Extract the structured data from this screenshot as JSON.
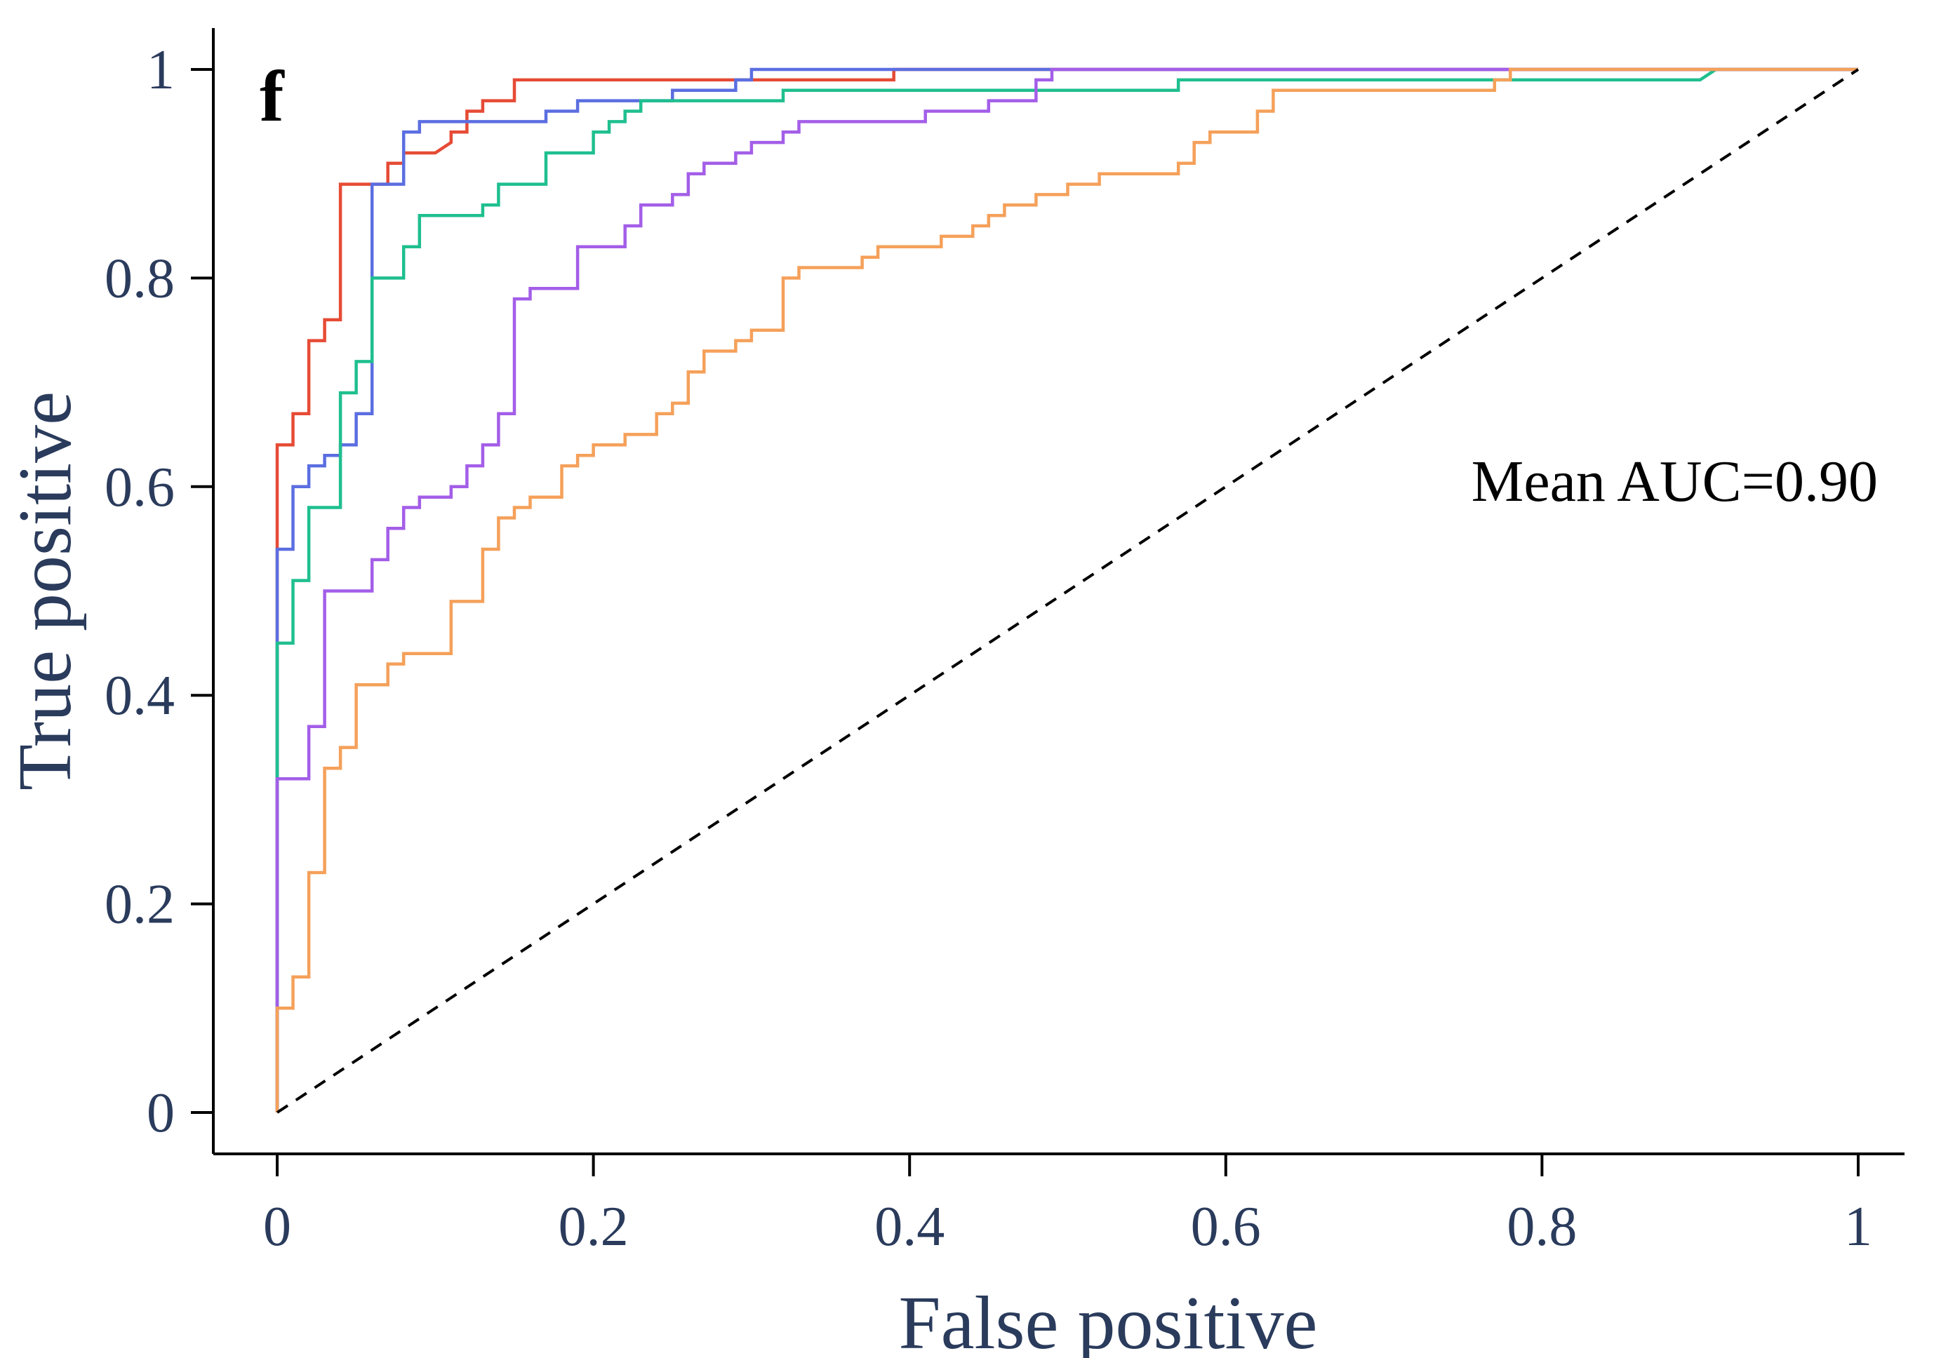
{
  "chart_data": {
    "type": "line",
    "xlabel": "False positive",
    "ylabel": "True positive",
    "panel_label": "f",
    "annotation": "Mean AUC=0.90",
    "xlim": [
      0,
      1
    ],
    "ylim": [
      0,
      1
    ],
    "x_ticks": [
      0,
      0.2,
      0.4,
      0.6,
      0.8,
      1
    ],
    "x_tick_labels": [
      "0",
      "0.2",
      "0.4",
      "0.6",
      "0.8",
      "1"
    ],
    "y_ticks": [
      0,
      0.2,
      0.4,
      0.6,
      0.8,
      1
    ],
    "y_tick_labels": [
      "0",
      "0.2",
      "0.4",
      "0.6",
      "0.8",
      "1"
    ],
    "grid": false,
    "legend": "none",
    "colors": {
      "axis": "#000000",
      "tick_text": "#2a3b5c",
      "diagonal": "#000000"
    },
    "reference_line": {
      "style": "dashed",
      "points": [
        [
          0,
          0
        ],
        [
          1,
          1
        ]
      ]
    },
    "series": [
      {
        "color": "#e64b35",
        "points": [
          [
            0,
            0
          ],
          [
            0,
            0.45
          ],
          [
            0,
            0.64
          ],
          [
            0.01,
            0.64
          ],
          [
            0.01,
            0.67
          ],
          [
            0.02,
            0.67
          ],
          [
            0.02,
            0.74
          ],
          [
            0.03,
            0.74
          ],
          [
            0.03,
            0.76
          ],
          [
            0.04,
            0.76
          ],
          [
            0.04,
            0.77
          ],
          [
            0.04,
            0.89
          ],
          [
            0.07,
            0.89
          ],
          [
            0.07,
            0.91
          ],
          [
            0.08,
            0.91
          ],
          [
            0.08,
            0.92
          ],
          [
            0.1,
            0.92
          ],
          [
            0.11,
            0.93
          ],
          [
            0.11,
            0.94
          ],
          [
            0.12,
            0.94
          ],
          [
            0.12,
            0.96
          ],
          [
            0.13,
            0.96
          ],
          [
            0.13,
            0.97
          ],
          [
            0.15,
            0.97
          ],
          [
            0.15,
            0.99
          ],
          [
            0.39,
            0.99
          ],
          [
            0.39,
            1
          ],
          [
            1,
            1
          ]
        ]
      },
      {
        "color": "#5b6ee1",
        "points": [
          [
            0,
            0
          ],
          [
            0,
            0.54
          ],
          [
            0.01,
            0.54
          ],
          [
            0.01,
            0.6
          ],
          [
            0.02,
            0.6
          ],
          [
            0.02,
            0.62
          ],
          [
            0.03,
            0.62
          ],
          [
            0.03,
            0.63
          ],
          [
            0.04,
            0.63
          ],
          [
            0.04,
            0.64
          ],
          [
            0.05,
            0.64
          ],
          [
            0.05,
            0.67
          ],
          [
            0.06,
            0.67
          ],
          [
            0.06,
            0.89
          ],
          [
            0.08,
            0.89
          ],
          [
            0.08,
            0.94
          ],
          [
            0.09,
            0.94
          ],
          [
            0.09,
            0.95
          ],
          [
            0.17,
            0.95
          ],
          [
            0.17,
            0.96
          ],
          [
            0.19,
            0.96
          ],
          [
            0.19,
            0.97
          ],
          [
            0.25,
            0.97
          ],
          [
            0.25,
            0.98
          ],
          [
            0.29,
            0.98
          ],
          [
            0.29,
            0.99
          ],
          [
            0.3,
            0.99
          ],
          [
            0.3,
            1
          ],
          [
            1,
            1
          ]
        ]
      },
      {
        "color": "#1fbf8f",
        "points": [
          [
            0,
            0
          ],
          [
            0,
            0.32
          ],
          [
            0,
            0.45
          ],
          [
            0.01,
            0.45
          ],
          [
            0.01,
            0.51
          ],
          [
            0.02,
            0.51
          ],
          [
            0.02,
            0.58
          ],
          [
            0.04,
            0.58
          ],
          [
            0.04,
            0.69
          ],
          [
            0.05,
            0.69
          ],
          [
            0.05,
            0.72
          ],
          [
            0.06,
            0.72
          ],
          [
            0.06,
            0.8
          ],
          [
            0.08,
            0.8
          ],
          [
            0.08,
            0.83
          ],
          [
            0.09,
            0.83
          ],
          [
            0.09,
            0.86
          ],
          [
            0.13,
            0.86
          ],
          [
            0.13,
            0.87
          ],
          [
            0.14,
            0.87
          ],
          [
            0.14,
            0.89
          ],
          [
            0.17,
            0.89
          ],
          [
            0.17,
            0.92
          ],
          [
            0.2,
            0.92
          ],
          [
            0.2,
            0.94
          ],
          [
            0.21,
            0.94
          ],
          [
            0.21,
            0.95
          ],
          [
            0.22,
            0.95
          ],
          [
            0.22,
            0.96
          ],
          [
            0.23,
            0.96
          ],
          [
            0.23,
            0.97
          ],
          [
            0.32,
            0.97
          ],
          [
            0.32,
            0.98
          ],
          [
            0.57,
            0.98
          ],
          [
            0.57,
            0.99
          ],
          [
            0.9,
            0.99
          ],
          [
            0.91,
            1
          ],
          [
            1,
            1
          ]
        ]
      },
      {
        "color": "#a35ee8",
        "points": [
          [
            0,
            0
          ],
          [
            0,
            0.1
          ],
          [
            0,
            0.32
          ],
          [
            0.02,
            0.32
          ],
          [
            0.02,
            0.37
          ],
          [
            0.03,
            0.37
          ],
          [
            0.03,
            0.5
          ],
          [
            0.06,
            0.5
          ],
          [
            0.06,
            0.53
          ],
          [
            0.07,
            0.53
          ],
          [
            0.07,
            0.56
          ],
          [
            0.08,
            0.56
          ],
          [
            0.08,
            0.58
          ],
          [
            0.09,
            0.58
          ],
          [
            0.09,
            0.59
          ],
          [
            0.11,
            0.59
          ],
          [
            0.11,
            0.6
          ],
          [
            0.12,
            0.6
          ],
          [
            0.12,
            0.62
          ],
          [
            0.13,
            0.62
          ],
          [
            0.13,
            0.64
          ],
          [
            0.14,
            0.64
          ],
          [
            0.14,
            0.67
          ],
          [
            0.15,
            0.67
          ],
          [
            0.15,
            0.78
          ],
          [
            0.16,
            0.78
          ],
          [
            0.16,
            0.79
          ],
          [
            0.19,
            0.79
          ],
          [
            0.19,
            0.83
          ],
          [
            0.22,
            0.83
          ],
          [
            0.22,
            0.85
          ],
          [
            0.23,
            0.85
          ],
          [
            0.23,
            0.87
          ],
          [
            0.25,
            0.87
          ],
          [
            0.25,
            0.88
          ],
          [
            0.26,
            0.88
          ],
          [
            0.26,
            0.9
          ],
          [
            0.27,
            0.9
          ],
          [
            0.27,
            0.91
          ],
          [
            0.29,
            0.91
          ],
          [
            0.29,
            0.92
          ],
          [
            0.3,
            0.92
          ],
          [
            0.3,
            0.93
          ],
          [
            0.32,
            0.93
          ],
          [
            0.32,
            0.94
          ],
          [
            0.33,
            0.94
          ],
          [
            0.33,
            0.95
          ],
          [
            0.41,
            0.95
          ],
          [
            0.41,
            0.96
          ],
          [
            0.45,
            0.96
          ],
          [
            0.45,
            0.97
          ],
          [
            0.48,
            0.97
          ],
          [
            0.48,
            0.99
          ],
          [
            0.49,
            0.99
          ],
          [
            0.49,
            1
          ],
          [
            1,
            1
          ]
        ]
      },
      {
        "color": "#f5a05a",
        "points": [
          [
            0,
            0
          ],
          [
            0,
            0.1
          ],
          [
            0.01,
            0.1
          ],
          [
            0.01,
            0.13
          ],
          [
            0.02,
            0.13
          ],
          [
            0.02,
            0.23
          ],
          [
            0.03,
            0.23
          ],
          [
            0.03,
            0.33
          ],
          [
            0.04,
            0.33
          ],
          [
            0.04,
            0.35
          ],
          [
            0.05,
            0.35
          ],
          [
            0.05,
            0.41
          ],
          [
            0.07,
            0.41
          ],
          [
            0.07,
            0.43
          ],
          [
            0.08,
            0.43
          ],
          [
            0.08,
            0.44
          ],
          [
            0.11,
            0.44
          ],
          [
            0.11,
            0.49
          ],
          [
            0.13,
            0.49
          ],
          [
            0.13,
            0.54
          ],
          [
            0.14,
            0.54
          ],
          [
            0.14,
            0.57
          ],
          [
            0.15,
            0.57
          ],
          [
            0.15,
            0.58
          ],
          [
            0.16,
            0.58
          ],
          [
            0.16,
            0.59
          ],
          [
            0.18,
            0.59
          ],
          [
            0.18,
            0.62
          ],
          [
            0.19,
            0.62
          ],
          [
            0.19,
            0.63
          ],
          [
            0.2,
            0.63
          ],
          [
            0.2,
            0.64
          ],
          [
            0.22,
            0.64
          ],
          [
            0.22,
            0.65
          ],
          [
            0.24,
            0.65
          ],
          [
            0.24,
            0.67
          ],
          [
            0.25,
            0.67
          ],
          [
            0.25,
            0.68
          ],
          [
            0.26,
            0.68
          ],
          [
            0.26,
            0.71
          ],
          [
            0.27,
            0.71
          ],
          [
            0.27,
            0.73
          ],
          [
            0.29,
            0.73
          ],
          [
            0.29,
            0.74
          ],
          [
            0.3,
            0.74
          ],
          [
            0.3,
            0.75
          ],
          [
            0.32,
            0.75
          ],
          [
            0.32,
            0.8
          ],
          [
            0.33,
            0.8
          ],
          [
            0.33,
            0.81
          ],
          [
            0.37,
            0.81
          ],
          [
            0.37,
            0.82
          ],
          [
            0.38,
            0.82
          ],
          [
            0.38,
            0.83
          ],
          [
            0.42,
            0.83
          ],
          [
            0.42,
            0.84
          ],
          [
            0.44,
            0.84
          ],
          [
            0.44,
            0.85
          ],
          [
            0.45,
            0.85
          ],
          [
            0.45,
            0.86
          ],
          [
            0.46,
            0.86
          ],
          [
            0.46,
            0.87
          ],
          [
            0.48,
            0.87
          ],
          [
            0.48,
            0.88
          ],
          [
            0.5,
            0.88
          ],
          [
            0.5,
            0.89
          ],
          [
            0.52,
            0.89
          ],
          [
            0.52,
            0.9
          ],
          [
            0.57,
            0.9
          ],
          [
            0.57,
            0.91
          ],
          [
            0.58,
            0.91
          ],
          [
            0.58,
            0.93
          ],
          [
            0.59,
            0.93
          ],
          [
            0.59,
            0.94
          ],
          [
            0.62,
            0.94
          ],
          [
            0.62,
            0.96
          ],
          [
            0.63,
            0.96
          ],
          [
            0.63,
            0.98
          ],
          [
            0.77,
            0.98
          ],
          [
            0.77,
            0.99
          ],
          [
            0.78,
            0.99
          ],
          [
            0.78,
            1
          ],
          [
            1,
            1
          ]
        ]
      }
    ]
  }
}
